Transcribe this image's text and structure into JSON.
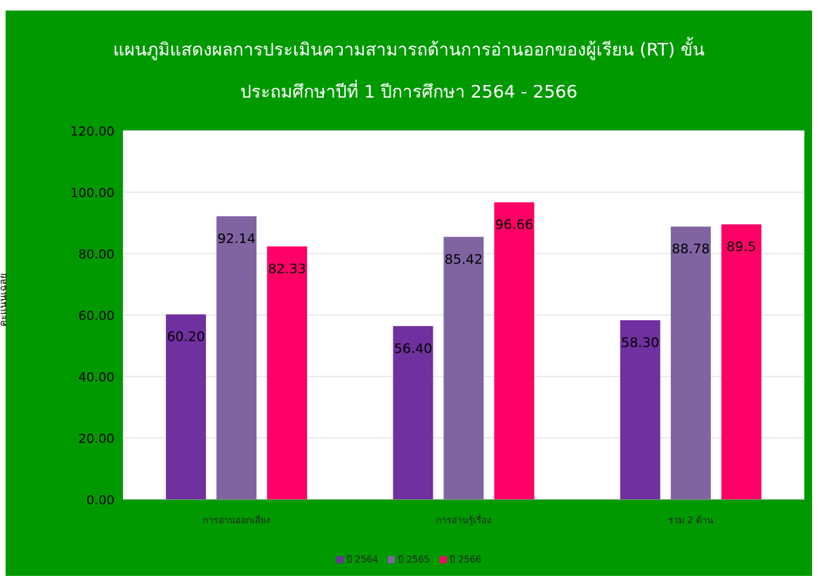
{
  "chart_data": {
    "type": "bar",
    "title_line1": "แผนภูมิแสดงผลการประเมินความสามารถด้านการอ่านออกของผู้เรียน (RT) ขั้น",
    "title_line2": "ประถมศึกษาปีที่ 1 ปีการศึกษา 2564 - 2566",
    "ylabel": "คะแนนเฉลี่ย",
    "xlabel": "",
    "ylim": [
      0,
      120
    ],
    "yticks": [
      "0.00",
      "20.00",
      "40.00",
      "60.00",
      "80.00",
      "100.00",
      "120.00"
    ],
    "categories": [
      "การอ่านออกเสียง",
      "การอ่านรู้เรื่อง",
      "รวม 2 ด้าน"
    ],
    "series": [
      {
        "name": "ปี 2564",
        "color": "#7030a0",
        "values": [
          60.2,
          56.4,
          58.3
        ],
        "labels": [
          "60.20",
          "56.40",
          "58.30"
        ]
      },
      {
        "name": "ปี 2565",
        "color": "#8064a2",
        "values": [
          92.14,
          85.42,
          88.78
        ],
        "labels": [
          "92.14",
          "85.42",
          "88.78"
        ]
      },
      {
        "name": "ปี 2566",
        "color": "#ff0066",
        "values": [
          82.33,
          96.66,
          89.5
        ],
        "labels": [
          "82.33",
          "96.66",
          "89.5"
        ]
      }
    ],
    "grid": true,
    "legend_position": "bottom",
    "background_color": "#009900",
    "plot_background": "#ffffff"
  }
}
